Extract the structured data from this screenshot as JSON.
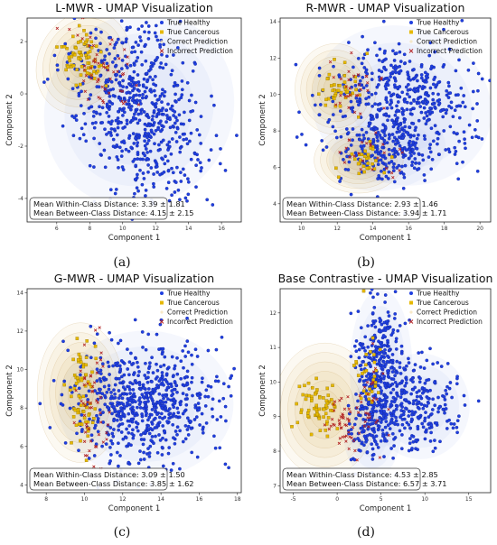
{
  "chart_data": [
    {
      "type": "scatter",
      "panel_label": "(a)",
      "title": "L-MWR - UMAP Visualization",
      "xlabel": "Component 1",
      "ylabel": "Component 2",
      "xlim": [
        4.2,
        17.2
      ],
      "ylim": [
        -4.9,
        2.9
      ],
      "xticks": [
        "6",
        "8",
        "10",
        "12",
        "14",
        "16"
      ],
      "yticks": [
        "-4",
        "-2",
        "0",
        "2"
      ],
      "legend": [
        "True Healthy",
        "True Cancerous",
        "Correct Prediction",
        "Incorrect Prediction"
      ],
      "legend_position": "top-right",
      "stats": [
        "Mean Within-Class Distance: 3.39 ± 1.81",
        "Mean Between-Class Distance: 4.15 ± 2.15"
      ],
      "colors": {
        "healthy": "#1f3fe0",
        "cancerous": "#e6b800",
        "incorrect": "#b22222",
        "density": "#d9a441"
      },
      "clusters": {
        "healthy": [
          {
            "cx": 11.0,
            "cy": -0.6,
            "sx": 2.2,
            "sy": 1.5,
            "rot": -0.62,
            "n": 640
          }
        ],
        "cancerous": [
          {
            "cx": 7.6,
            "cy": 1.4,
            "sx": 0.7,
            "sy": 0.45,
            "rot": -0.4,
            "n": 70
          }
        ],
        "incorrect": [
          {
            "cx": 8.6,
            "cy": 1.0,
            "sx": 1.2,
            "sy": 0.6,
            "rot": -0.5,
            "n": 55
          }
        ],
        "density": [
          {
            "cx": 7.6,
            "cy": 1.2,
            "sx": 1.2,
            "sy": 0.9,
            "rot": -0.5
          }
        ]
      }
    },
    {
      "type": "scatter",
      "panel_label": "(b)",
      "title": "R-MWR - UMAP Visualization",
      "xlabel": "Component 1",
      "ylabel": "Component 2",
      "xlim": [
        8.8,
        20.6
      ],
      "ylim": [
        3.0,
        14.2
      ],
      "xticks": [
        "10",
        "12",
        "14",
        "16",
        "18",
        "20"
      ],
      "yticks": [
        "4",
        "6",
        "8",
        "10",
        "12",
        "14"
      ],
      "legend": [
        "True Healthy",
        "True Cancerous",
        "Correct Prediction",
        "Incorrect Prediction"
      ],
      "legend_position": "top-right",
      "stats": [
        "Mean Within-Class Distance: 2.93 ± 1.46",
        "Mean Between-Class Distance: 3.94 ± 1.71"
      ],
      "colors": {
        "healthy": "#1f3fe0",
        "cancerous": "#e6b800",
        "incorrect": "#b22222",
        "density": "#d9a441"
      },
      "clusters": {
        "healthy": [
          {
            "cx": 15.6,
            "cy": 9.4,
            "sx": 2.0,
            "sy": 1.7,
            "rot": -0.3,
            "n": 520
          },
          {
            "cx": 14.8,
            "cy": 6.8,
            "sx": 1.3,
            "sy": 0.8,
            "rot": 0.2,
            "n": 140
          }
        ],
        "cancerous": [
          {
            "cx": 12.0,
            "cy": 10.4,
            "sx": 0.6,
            "sy": 0.7,
            "rot": 0,
            "n": 40
          },
          {
            "cx": 13.4,
            "cy": 6.4,
            "sx": 0.6,
            "sy": 0.5,
            "rot": 0,
            "n": 30
          }
        ],
        "incorrect": [
          {
            "cx": 12.8,
            "cy": 10.0,
            "sx": 0.8,
            "sy": 0.8,
            "rot": 0,
            "n": 30
          },
          {
            "cx": 14.0,
            "cy": 6.6,
            "sx": 0.9,
            "sy": 0.6,
            "rot": 0,
            "n": 25
          }
        ],
        "density": [
          {
            "cx": 11.9,
            "cy": 10.3,
            "sx": 1.0,
            "sy": 1.1,
            "rot": 0
          },
          {
            "cx": 13.2,
            "cy": 6.4,
            "sx": 1.1,
            "sy": 0.8,
            "rot": 0
          }
        ]
      }
    },
    {
      "type": "scatter",
      "panel_label": "(c)",
      "title": "G-MWR - UMAP Visualization",
      "xlabel": "Component 1",
      "ylabel": "Component 2",
      "xlim": [
        7.0,
        18.2
      ],
      "ylim": [
        3.6,
        14.2
      ],
      "xticks": [
        "8",
        "10",
        "12",
        "14",
        "16",
        "18"
      ],
      "yticks": [
        "4",
        "6",
        "8",
        "10",
        "12",
        "14"
      ],
      "legend": [
        "True Healthy",
        "True Cancerous",
        "Correct Prediction",
        "Incorrect Prediction"
      ],
      "legend_position": "top-right",
      "stats": [
        "Mean Within-Class Distance: 3.09 ± 1.50",
        "Mean Between-Class Distance: 3.85 ± 1.62"
      ],
      "colors": {
        "healthy": "#1f3fe0",
        "cancerous": "#e6b800",
        "incorrect": "#b22222",
        "density": "#d9a441"
      },
      "clusters": {
        "healthy": [
          {
            "cx": 13.2,
            "cy": 8.2,
            "sx": 1.8,
            "sy": 1.5,
            "rot": 0,
            "n": 650
          }
        ],
        "cancerous": [
          {
            "cx": 9.8,
            "cy": 8.6,
            "sx": 0.4,
            "sy": 1.4,
            "rot": 0,
            "n": 70
          }
        ],
        "incorrect": [
          {
            "cx": 10.4,
            "cy": 8.2,
            "sx": 0.5,
            "sy": 1.6,
            "rot": 0,
            "n": 55
          }
        ],
        "density": [
          {
            "cx": 9.8,
            "cy": 8.8,
            "sx": 1.0,
            "sy": 1.6,
            "rot": 0
          }
        ]
      }
    },
    {
      "type": "scatter",
      "panel_label": "(d)",
      "title": "Base Contrastive - UMAP Visualization",
      "xlabel": "Component 1",
      "ylabel": "Component 2",
      "xlim": [
        -6.5,
        17.5
      ],
      "ylim": [
        6.8,
        12.7
      ],
      "xticks": [
        "-5",
        "0",
        "5",
        "10",
        "15"
      ],
      "yticks": [
        "7",
        "8",
        "9",
        "10",
        "11",
        "12"
      ],
      "legend": [
        "True Healthy",
        "True Cancerous",
        "Correct Prediction",
        "Incorrect Prediction"
      ],
      "legend_position": "top-right",
      "stats": [
        "Mean Within-Class Distance: 4.53 ± 2.85",
        "Mean Between-Class Distance: 6.57 ± 3.71"
      ],
      "colors": {
        "healthy": "#1f3fe0",
        "cancerous": "#e6b800",
        "incorrect": "#b22222",
        "density": "#d9a441"
      },
      "clusters": {
        "healthy": [
          {
            "cx": 5.0,
            "cy": 10.4,
            "sx": 1.4,
            "sy": 0.9,
            "rot": 0,
            "n": 330
          },
          {
            "cx": 9.5,
            "cy": 9.3,
            "sx": 2.2,
            "sy": 0.6,
            "rot": 0,
            "n": 230
          },
          {
            "cx": 4.0,
            "cy": 8.6,
            "sx": 1.3,
            "sy": 0.55,
            "rot": 0,
            "n": 110
          }
        ],
        "cancerous": [
          {
            "cx": -2.0,
            "cy": 9.2,
            "sx": 1.2,
            "sy": 0.35,
            "rot": 0,
            "n": 70
          },
          {
            "cx": 3.4,
            "cy": 10.2,
            "sx": 0.8,
            "sy": 0.6,
            "rot": 0,
            "n": 30
          }
        ],
        "incorrect": [
          {
            "cx": 0.5,
            "cy": 8.8,
            "sx": 1.0,
            "sy": 0.4,
            "rot": 0,
            "n": 45
          },
          {
            "cx": 3.8,
            "cy": 9.6,
            "sx": 1.2,
            "sy": 0.7,
            "rot": 0,
            "n": 30
          }
        ],
        "density": [
          {
            "cx": -1.4,
            "cy": 9.2,
            "sx": 2.6,
            "sy": 0.85,
            "rot": 0
          }
        ]
      }
    }
  ]
}
